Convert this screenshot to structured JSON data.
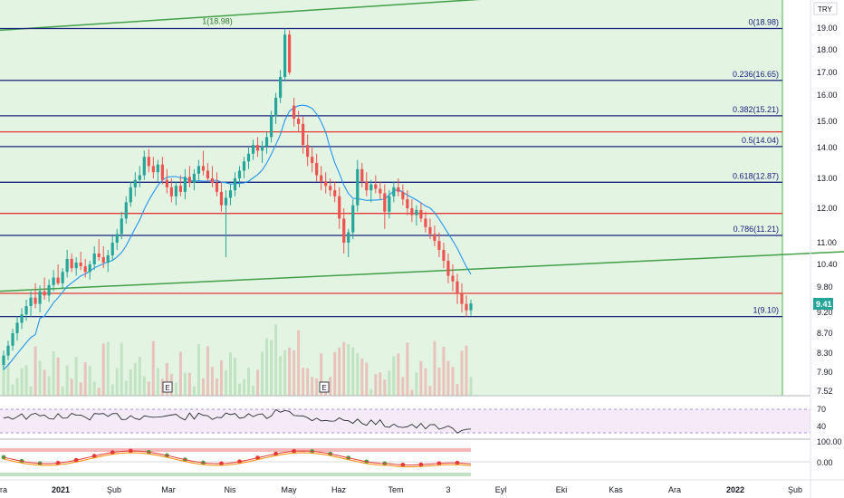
{
  "chart_data": {
    "type": "candlestick",
    "currency": "TRY",
    "current_price": "9.41",
    "y_axis_ticks": [
      "19.00",
      "18.00",
      "17.00",
      "16.00",
      "15.00",
      "14.00",
      "13.00",
      "12.00",
      "11.00",
      "10.40",
      "9.80",
      "9.20",
      "8.70",
      "8.30",
      "7.90",
      "7.52"
    ],
    "x_axis_ticks": [
      "ra",
      "2021",
      "Şub",
      "Mar",
      "Nis",
      "May",
      "Haz",
      "Tem",
      "3",
      "Eyl",
      "Eki",
      "Kas",
      "Ara",
      "2022",
      "Şub"
    ],
    "fibonacci_levels": [
      {
        "label": "0(18.98)",
        "value": 18.98
      },
      {
        "label": "0.236(16.65)",
        "value": 16.65
      },
      {
        "label": "0.382(15.21)",
        "value": 15.21
      },
      {
        "label": "0.5(14.04)",
        "value": 14.04
      },
      {
        "label": "0.618(12.87)",
        "value": 12.87
      },
      {
        "label": "0.786(11.21)",
        "value": 11.21
      },
      {
        "label": "1(9.10)",
        "value": 9.1
      }
    ],
    "fib_anchor_label": "1(18.98)",
    "red_horizontal_levels": [
      14.6,
      11.85,
      9.65
    ],
    "trend_lines": [
      {
        "name": "upper",
        "from": {
          "x": 0,
          "y": 18.9
        },
        "to": {
          "x": 1,
          "y": 21.4
        }
      },
      {
        "name": "lower",
        "from": {
          "x": 0,
          "y": 9.7
        },
        "to": {
          "x": 1,
          "y": 10.75
        }
      }
    ],
    "earnings_markers": [
      "E",
      "E"
    ],
    "price_series": [
      [
        0,
        8.05,
        8.35,
        7.95,
        8.25
      ],
      [
        1,
        8.25,
        8.55,
        8.15,
        8.45
      ],
      [
        2,
        8.45,
        8.8,
        8.35,
        8.7
      ],
      [
        3,
        8.7,
        9.1,
        8.55,
        8.95
      ],
      [
        4,
        8.95,
        9.3,
        8.8,
        9.15
      ],
      [
        5,
        9.15,
        9.5,
        9.0,
        9.35
      ],
      [
        6,
        9.35,
        9.7,
        9.1,
        9.55
      ],
      [
        7,
        9.55,
        9.9,
        9.3,
        9.4
      ],
      [
        8,
        9.4,
        9.85,
        9.2,
        9.7
      ],
      [
        9,
        9.7,
        10.05,
        9.5,
        9.6
      ],
      [
        10,
        9.6,
        10.0,
        9.45,
        9.85
      ],
      [
        11,
        9.85,
        10.25,
        9.7,
        10.05
      ],
      [
        12,
        10.05,
        10.4,
        9.85,
        9.9
      ],
      [
        13,
        9.9,
        10.3,
        9.75,
        10.2
      ],
      [
        14,
        10.2,
        10.8,
        10.05,
        10.55
      ],
      [
        15,
        10.55,
        10.7,
        10.2,
        10.3
      ],
      [
        16,
        10.3,
        10.6,
        10.1,
        10.45
      ],
      [
        17,
        10.45,
        10.75,
        10.25,
        10.35
      ],
      [
        18,
        10.35,
        10.55,
        10.05,
        10.2
      ],
      [
        19,
        10.2,
        10.5,
        10.0,
        10.4
      ],
      [
        20,
        10.4,
        10.9,
        10.25,
        10.7
      ],
      [
        21,
        10.7,
        11.1,
        10.5,
        10.6
      ],
      [
        22,
        10.6,
        10.9,
        10.3,
        10.45
      ],
      [
        23,
        10.45,
        10.8,
        10.2,
        10.65
      ],
      [
        24,
        10.65,
        11.2,
        10.5,
        11.0
      ],
      [
        25,
        11.0,
        11.4,
        10.8,
        11.25
      ],
      [
        26,
        11.25,
        11.9,
        11.1,
        11.7
      ],
      [
        27,
        11.7,
        12.4,
        11.55,
        12.2
      ],
      [
        28,
        12.2,
        12.9,
        12.05,
        12.7
      ],
      [
        29,
        12.7,
        13.2,
        12.4,
        12.95
      ],
      [
        30,
        12.95,
        13.4,
        12.7,
        13.1
      ],
      [
        31,
        13.1,
        13.9,
        12.95,
        13.7
      ],
      [
        32,
        13.7,
        13.95,
        13.2,
        13.4
      ],
      [
        33,
        13.4,
        13.7,
        13.0,
        13.2
      ],
      [
        34,
        13.2,
        13.6,
        12.9,
        13.45
      ],
      [
        35,
        13.45,
        13.7,
        12.8,
        12.95
      ],
      [
        36,
        12.95,
        13.3,
        12.5,
        12.7
      ],
      [
        37,
        12.7,
        13.0,
        12.2,
        12.4
      ],
      [
        38,
        12.4,
        12.9,
        12.1,
        12.75
      ],
      [
        39,
        12.75,
        13.1,
        12.4,
        12.55
      ],
      [
        40,
        12.55,
        13.3,
        12.3,
        13.05
      ],
      [
        41,
        13.05,
        13.4,
        12.7,
        12.85
      ],
      [
        42,
        12.85,
        13.3,
        12.6,
        13.15
      ],
      [
        43,
        13.15,
        13.6,
        12.9,
        13.4
      ],
      [
        44,
        13.4,
        13.9,
        13.1,
        13.25
      ],
      [
        45,
        13.25,
        13.5,
        12.9,
        13.0
      ],
      [
        46,
        13.0,
        13.4,
        12.7,
        12.85
      ],
      [
        47,
        12.85,
        13.2,
        12.4,
        12.55
      ],
      [
        48,
        12.55,
        12.9,
        11.9,
        12.1
      ],
      [
        49,
        12.1,
        12.6,
        10.6,
        12.35
      ],
      [
        50,
        12.35,
        12.8,
        12.1,
        12.6
      ],
      [
        51,
        12.6,
        13.2,
        12.4,
        13.0
      ],
      [
        52,
        13.0,
        13.4,
        12.7,
        13.25
      ],
      [
        53,
        13.25,
        13.7,
        13.0,
        13.55
      ],
      [
        54,
        13.55,
        14.0,
        13.3,
        13.8
      ],
      [
        55,
        13.8,
        14.3,
        13.6,
        14.1
      ],
      [
        56,
        14.1,
        14.4,
        13.7,
        13.9
      ],
      [
        57,
        13.9,
        14.25,
        13.5,
        14.05
      ],
      [
        58,
        14.05,
        14.6,
        13.8,
        14.4
      ],
      [
        59,
        14.4,
        15.4,
        14.2,
        15.2
      ],
      [
        60,
        15.2,
        16.1,
        14.9,
        15.9
      ],
      [
        61,
        15.9,
        17.1,
        15.7,
        16.8
      ],
      [
        62,
        16.8,
        18.98,
        16.6,
        18.7
      ],
      [
        63,
        18.7,
        18.9,
        16.9,
        17.0
      ],
      [
        64,
        15.6,
        15.9,
        14.8,
        15.1
      ],
      [
        65,
        15.1,
        15.4,
        14.6,
        14.9
      ],
      [
        66,
        14.9,
        15.2,
        13.8,
        14.1
      ],
      [
        67,
        14.1,
        14.5,
        13.4,
        13.7
      ],
      [
        68,
        13.7,
        14.0,
        13.2,
        13.5
      ],
      [
        69,
        13.5,
        13.8,
        12.9,
        13.1
      ],
      [
        70,
        13.1,
        13.4,
        12.6,
        12.9
      ],
      [
        71,
        12.9,
        13.2,
        12.5,
        12.75
      ],
      [
        72,
        12.75,
        13.0,
        12.4,
        12.6
      ],
      [
        73,
        12.6,
        12.9,
        12.2,
        12.4
      ],
      [
        74,
        12.4,
        12.7,
        11.4,
        11.7
      ],
      [
        75,
        11.7,
        12.0,
        10.7,
        11.0
      ],
      [
        76,
        11.0,
        11.4,
        10.6,
        11.3
      ],
      [
        77,
        11.3,
        12.3,
        11.1,
        12.1
      ],
      [
        78,
        12.1,
        13.6,
        11.9,
        13.3
      ],
      [
        79,
        13.3,
        13.5,
        12.7,
        12.9
      ],
      [
        80,
        12.9,
        13.2,
        12.4,
        12.6
      ],
      [
        81,
        12.6,
        12.95,
        12.2,
        12.8
      ],
      [
        82,
        12.8,
        13.1,
        12.5,
        12.65
      ],
      [
        83,
        12.65,
        12.9,
        12.3,
        12.5
      ],
      [
        84,
        12.5,
        12.8,
        11.4,
        11.9
      ],
      [
        85,
        11.9,
        12.6,
        11.7,
        12.4
      ],
      [
        86,
        12.4,
        12.9,
        12.2,
        12.7
      ],
      [
        87,
        12.7,
        13.0,
        12.4,
        12.55
      ],
      [
        88,
        12.55,
        12.8,
        12.1,
        12.3
      ],
      [
        89,
        12.3,
        12.6,
        11.8,
        12.0
      ],
      [
        90,
        12.0,
        12.3,
        11.6,
        11.8
      ],
      [
        91,
        11.8,
        12.1,
        11.5,
        11.95
      ],
      [
        92,
        11.95,
        12.2,
        11.6,
        11.7
      ],
      [
        93,
        11.7,
        11.9,
        11.3,
        11.45
      ],
      [
        94,
        11.45,
        11.7,
        11.1,
        11.25
      ],
      [
        95,
        11.25,
        11.5,
        10.9,
        11.05
      ],
      [
        96,
        11.05,
        11.3,
        10.6,
        10.8
      ],
      [
        97,
        10.8,
        11.0,
        10.3,
        10.5
      ],
      [
        98,
        10.5,
        10.7,
        9.9,
        10.1
      ],
      [
        99,
        10.1,
        10.4,
        9.7,
        9.95
      ],
      [
        100,
        9.95,
        10.15,
        9.4,
        9.65
      ],
      [
        101,
        9.65,
        9.9,
        9.2,
        9.4
      ],
      [
        102,
        9.4,
        9.6,
        9.1,
        9.25
      ],
      [
        103,
        9.25,
        9.5,
        9.12,
        9.41
      ]
    ],
    "oscillators": [
      {
        "name": "rsi",
        "ticks": [
          "70",
          "40"
        ]
      },
      {
        "name": "macd",
        "ticks": [
          "100.00",
          "0.00"
        ]
      }
    ]
  }
}
